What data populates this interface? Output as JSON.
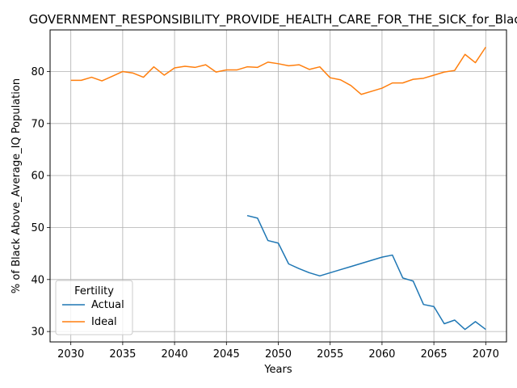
{
  "chart_data": {
    "type": "line",
    "title": "GOVERNMENT_RESPONSIBILITY_PROVIDE_HEALTH_CARE_FOR_THE_SICK_for_Black",
    "xlabel": "Years",
    "ylabel": "% of Black Above_Average_IQ Population",
    "xlim": [
      2028,
      2072
    ],
    "ylim": [
      28,
      88
    ],
    "xticks": [
      2030,
      2035,
      2040,
      2045,
      2050,
      2055,
      2060,
      2065,
      2070
    ],
    "yticks": [
      30,
      40,
      50,
      60,
      70,
      80
    ],
    "grid": true,
    "legend": {
      "title": "Fertility",
      "placement": "lower-left"
    },
    "series": [
      {
        "name": "Actual",
        "color": "#1f77b4",
        "x": [
          2047,
          2048,
          2049,
          2050,
          2051,
          2052,
          2053,
          2054,
          2055,
          2056,
          2057,
          2058,
          2059,
          2060,
          2061,
          2062,
          2063,
          2064,
          2065,
          2066,
          2067,
          2068,
          2069,
          2070
        ],
        "y": [
          52.3,
          51.8,
          47.5,
          47.0,
          43.0,
          42.1,
          41.3,
          40.7,
          41.3,
          41.9,
          42.5,
          43.1,
          43.7,
          44.3,
          44.7,
          40.3,
          39.7,
          35.2,
          34.8,
          31.5,
          32.2,
          30.4,
          31.9,
          30.4
        ]
      },
      {
        "name": "Ideal",
        "color": "#ff7f0e",
        "x": [
          2030,
          2031,
          2032,
          2033,
          2034,
          2035,
          2036,
          2037,
          2038,
          2039,
          2040,
          2041,
          2042,
          2043,
          2044,
          2045,
          2046,
          2047,
          2048,
          2049,
          2050,
          2051,
          2052,
          2053,
          2054,
          2055,
          2056,
          2057,
          2058,
          2059,
          2060,
          2061,
          2062,
          2063,
          2064,
          2065,
          2066,
          2067,
          2068,
          2069,
          2070
        ],
        "y": [
          78.3,
          78.3,
          78.9,
          78.2,
          79.1,
          80.0,
          79.7,
          78.9,
          80.9,
          79.3,
          80.7,
          81.0,
          80.8,
          81.3,
          79.9,
          80.3,
          80.3,
          80.9,
          80.8,
          81.8,
          81.5,
          81.1,
          81.3,
          80.4,
          80.9,
          78.8,
          78.4,
          77.3,
          75.6,
          76.2,
          76.8,
          77.8,
          77.8,
          78.5,
          78.7,
          79.3,
          79.9,
          80.2,
          83.3,
          81.7,
          84.7
        ]
      }
    ]
  }
}
